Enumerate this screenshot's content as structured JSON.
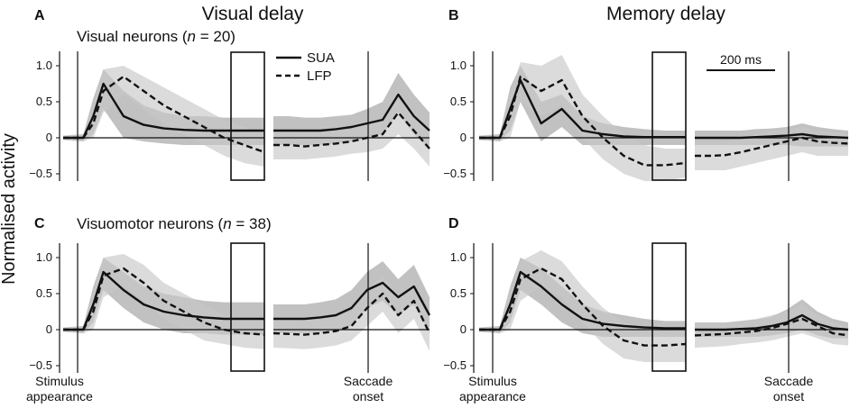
{
  "figure": {
    "ylabel": "Normalised activity",
    "columns": [
      "Visual delay",
      "Memory delay"
    ],
    "rows": [
      {
        "prefix": "Visual neurons (",
        "n_symbol": "n",
        "suffix": " = 20)"
      },
      {
        "prefix": "Visuomotor neurons (",
        "n_symbol": "n",
        "suffix": " = 38)"
      }
    ],
    "legend": {
      "sua": "SUA",
      "lfp": "LFP"
    },
    "scalebar": "200 ms",
    "event_labels": {
      "stim_1": "Stimulus",
      "stim_2": "appearance",
      "sacc_1": "Saccade",
      "sacc_2": "onset"
    },
    "yticks": [
      "1.0",
      "0.5",
      "0",
      "−0.5"
    ]
  },
  "chart_data": [
    {
      "type": "line",
      "panel": "A",
      "column": "Visual delay",
      "row": "Visual neurons (n = 20)",
      "ylim": [
        -0.6,
        1.2
      ],
      "yticks": [
        1.0,
        0.5,
        0,
        -0.5
      ],
      "stimulus_segment": {
        "x": [
          0,
          0.1,
          0.15,
          0.2,
          0.3,
          0.4,
          0.5,
          0.6,
          0.7,
          0.8,
          0.9,
          1.0
        ],
        "series": [
          {
            "name": "SUA",
            "values": [
              0,
              0,
              0.3,
              0.75,
              0.3,
              0.18,
              0.13,
              0.11,
              0.1,
              0.1,
              0.1,
              0.1
            ],
            "sem_upper": [
              0.03,
              0.05,
              0.55,
              0.95,
              0.65,
              0.45,
              0.35,
              0.3,
              0.3,
              0.28,
              0.28,
              0.28
            ],
            "sem_lower": [
              -0.03,
              -0.05,
              0.05,
              0.4,
              0.0,
              -0.05,
              -0.08,
              -0.1,
              -0.1,
              -0.1,
              -0.1,
              -0.1
            ]
          },
          {
            "name": "LFP",
            "values": [
              0,
              0,
              0.2,
              0.65,
              0.85,
              0.65,
              0.45,
              0.3,
              0.15,
              0.0,
              -0.1,
              -0.2
            ],
            "sem_upper": [
              0.03,
              0.05,
              0.45,
              0.95,
              1.0,
              0.85,
              0.7,
              0.55,
              0.4,
              0.25,
              0.15,
              0.05
            ],
            "sem_lower": [
              -0.03,
              -0.05,
              0.0,
              0.35,
              0.6,
              0.4,
              0.2,
              0.05,
              -0.1,
              -0.25,
              -0.35,
              -0.4
            ]
          }
        ]
      },
      "saccade_segment": {
        "x": [
          0,
          0.1,
          0.2,
          0.3,
          0.4,
          0.5,
          0.6,
          0.7,
          0.8,
          0.9,
          1.0
        ],
        "series": [
          {
            "name": "SUA",
            "values": [
              0.1,
              0.1,
              0.1,
              0.1,
              0.12,
              0.15,
              0.2,
              0.25,
              0.6,
              0.3,
              0.1
            ],
            "sem_upper": [
              0.3,
              0.3,
              0.28,
              0.28,
              0.3,
              0.32,
              0.4,
              0.5,
              0.9,
              0.6,
              0.35
            ],
            "sem_lower": [
              -0.1,
              -0.1,
              -0.1,
              -0.1,
              -0.08,
              -0.05,
              0.0,
              0.05,
              0.35,
              0.05,
              -0.15
            ]
          },
          {
            "name": "LFP",
            "values": [
              -0.1,
              -0.1,
              -0.12,
              -0.1,
              -0.08,
              -0.05,
              0.0,
              0.05,
              0.35,
              0.1,
              -0.15
            ],
            "sem_upper": [
              0.1,
              0.1,
              0.08,
              0.08,
              0.1,
              0.12,
              0.2,
              0.25,
              0.65,
              0.35,
              0.1
            ],
            "sem_lower": [
              -0.3,
              -0.3,
              -0.3,
              -0.28,
              -0.26,
              -0.22,
              -0.2,
              -0.15,
              0.05,
              -0.15,
              -0.4
            ]
          }
        ]
      }
    },
    {
      "type": "line",
      "panel": "B",
      "column": "Memory delay",
      "row": "Visual neurons (n = 20)",
      "ylim": [
        -0.6,
        1.2
      ],
      "yticks": [
        1.0,
        0.5,
        0,
        -0.5
      ],
      "stimulus_segment": {
        "x": [
          0,
          0.1,
          0.15,
          0.2,
          0.3,
          0.4,
          0.5,
          0.6,
          0.7,
          0.8,
          0.9,
          1.0
        ],
        "series": [
          {
            "name": "SUA",
            "values": [
              0,
              0,
              0.4,
              0.8,
              0.2,
              0.4,
              0.1,
              0.05,
              0.02,
              0.01,
              0.01,
              0.01
            ],
            "sem_upper": [
              0.03,
              0.05,
              0.7,
              1.0,
              0.5,
              0.6,
              0.3,
              0.2,
              0.15,
              0.12,
              0.1,
              0.1
            ],
            "sem_lower": [
              -0.03,
              -0.05,
              0.1,
              0.5,
              -0.05,
              0.15,
              -0.1,
              -0.1,
              -0.1,
              -0.1,
              -0.1,
              -0.1
            ]
          },
          {
            "name": "LFP",
            "values": [
              0,
              0,
              0.3,
              0.85,
              0.65,
              0.8,
              0.3,
              0.0,
              -0.25,
              -0.38,
              -0.38,
              -0.35
            ],
            "sem_upper": [
              0.03,
              0.05,
              0.6,
              1.05,
              1.0,
              1.15,
              0.6,
              0.3,
              0.05,
              -0.1,
              -0.15,
              -0.15
            ],
            "sem_lower": [
              -0.03,
              -0.05,
              0.0,
              0.5,
              0.3,
              0.45,
              0.0,
              -0.3,
              -0.5,
              -0.6,
              -0.6,
              -0.55
            ]
          }
        ]
      },
      "saccade_segment": {
        "x": [
          0,
          0.1,
          0.2,
          0.3,
          0.4,
          0.5,
          0.6,
          0.7,
          0.8,
          0.9,
          1.0
        ],
        "series": [
          {
            "name": "SUA",
            "values": [
              0.0,
              0.0,
              0.0,
              0.0,
              0.01,
              0.02,
              0.03,
              0.05,
              0.02,
              0.01,
              0.0
            ],
            "sem_upper": [
              0.1,
              0.1,
              0.1,
              0.1,
              0.12,
              0.13,
              0.15,
              0.2,
              0.15,
              0.12,
              0.1
            ],
            "sem_lower": [
              -0.1,
              -0.1,
              -0.1,
              -0.1,
              -0.1,
              -0.1,
              -0.1,
              -0.12,
              -0.12,
              -0.12,
              -0.12
            ]
          },
          {
            "name": "LFP",
            "values": [
              -0.25,
              -0.25,
              -0.24,
              -0.2,
              -0.15,
              -0.1,
              -0.05,
              0.0,
              -0.05,
              -0.07,
              -0.08
            ],
            "sem_upper": [
              -0.05,
              -0.05,
              -0.05,
              0.0,
              0.05,
              0.1,
              0.12,
              0.15,
              0.1,
              0.08,
              0.05
            ],
            "sem_lower": [
              -0.45,
              -0.45,
              -0.45,
              -0.4,
              -0.35,
              -0.3,
              -0.25,
              -0.2,
              -0.25,
              -0.25,
              -0.25
            ]
          }
        ]
      }
    },
    {
      "type": "line",
      "panel": "C",
      "column": "Visual delay",
      "row": "Visuomotor neurons (n = 38)",
      "ylim": [
        -0.6,
        1.2
      ],
      "yticks": [
        1.0,
        0.5,
        0,
        -0.5
      ],
      "stimulus_segment": {
        "x": [
          0,
          0.1,
          0.15,
          0.2,
          0.3,
          0.4,
          0.5,
          0.6,
          0.7,
          0.8,
          0.9,
          1.0
        ],
        "series": [
          {
            "name": "SUA",
            "values": [
              0,
              0,
              0.35,
              0.8,
              0.55,
              0.35,
              0.25,
              0.2,
              0.17,
              0.15,
              0.15,
              0.15
            ],
            "sem_upper": [
              0.03,
              0.05,
              0.6,
              1.0,
              0.8,
              0.6,
              0.5,
              0.45,
              0.4,
              0.38,
              0.38,
              0.38
            ],
            "sem_lower": [
              -0.03,
              -0.05,
              0.1,
              0.55,
              0.3,
              0.1,
              0.0,
              -0.05,
              -0.05,
              -0.07,
              -0.07,
              -0.07
            ]
          },
          {
            "name": "LFP",
            "values": [
              0,
              0,
              0.25,
              0.75,
              0.85,
              0.65,
              0.4,
              0.25,
              0.1,
              0.0,
              -0.05,
              -0.07
            ],
            "sem_upper": [
              0.03,
              0.05,
              0.5,
              1.0,
              1.05,
              0.9,
              0.65,
              0.5,
              0.35,
              0.2,
              0.15,
              0.12
            ],
            "sem_lower": [
              -0.03,
              -0.05,
              0.0,
              0.45,
              0.6,
              0.4,
              0.15,
              0.0,
              -0.15,
              -0.2,
              -0.25,
              -0.27
            ]
          }
        ]
      },
      "saccade_segment": {
        "x": [
          0,
          0.1,
          0.2,
          0.3,
          0.4,
          0.5,
          0.6,
          0.7,
          0.8,
          0.9,
          1.0
        ],
        "series": [
          {
            "name": "SUA",
            "values": [
              0.15,
              0.15,
              0.15,
              0.17,
              0.2,
              0.3,
              0.55,
              0.65,
              0.45,
              0.6,
              0.2
            ],
            "sem_upper": [
              0.35,
              0.35,
              0.35,
              0.38,
              0.42,
              0.55,
              0.8,
              0.95,
              0.7,
              0.9,
              0.45
            ],
            "sem_lower": [
              -0.05,
              -0.05,
              -0.05,
              -0.04,
              -0.02,
              0.05,
              0.3,
              0.4,
              0.2,
              0.35,
              -0.05
            ]
          },
          {
            "name": "LFP",
            "values": [
              -0.05,
              -0.06,
              -0.07,
              -0.05,
              -0.02,
              0.05,
              0.3,
              0.5,
              0.2,
              0.4,
              -0.05
            ],
            "sem_upper": [
              0.15,
              0.14,
              0.13,
              0.15,
              0.18,
              0.25,
              0.55,
              0.75,
              0.45,
              0.65,
              0.2
            ],
            "sem_lower": [
              -0.25,
              -0.26,
              -0.27,
              -0.25,
              -0.22,
              -0.15,
              0.05,
              0.25,
              -0.05,
              0.15,
              -0.3
            ]
          }
        ]
      }
    },
    {
      "type": "line",
      "panel": "D",
      "column": "Memory delay",
      "row": "Visuomotor neurons (n = 38)",
      "ylim": [
        -0.6,
        1.2
      ],
      "yticks": [
        1.0,
        0.5,
        0,
        -0.5
      ],
      "stimulus_segment": {
        "x": [
          0,
          0.1,
          0.15,
          0.2,
          0.3,
          0.4,
          0.5,
          0.6,
          0.7,
          0.8,
          0.9,
          1.0
        ],
        "series": [
          {
            "name": "SUA",
            "values": [
              0,
              0,
              0.35,
              0.8,
              0.6,
              0.35,
              0.15,
              0.08,
              0.05,
              0.03,
              0.02,
              0.02
            ],
            "sem_upper": [
              0.03,
              0.05,
              0.6,
              1.0,
              0.85,
              0.6,
              0.35,
              0.25,
              0.2,
              0.15,
              0.12,
              0.12
            ],
            "sem_lower": [
              -0.03,
              -0.05,
              0.1,
              0.55,
              0.35,
              0.1,
              -0.05,
              -0.1,
              -0.1,
              -0.1,
              -0.1,
              -0.1
            ]
          },
          {
            "name": "LFP",
            "values": [
              0,
              0,
              0.25,
              0.7,
              0.85,
              0.7,
              0.35,
              0.05,
              -0.15,
              -0.22,
              -0.22,
              -0.2
            ],
            "sem_upper": [
              0.03,
              0.05,
              0.5,
              0.95,
              1.1,
              0.95,
              0.6,
              0.3,
              0.1,
              0.0,
              -0.02,
              0.0
            ],
            "sem_lower": [
              -0.03,
              -0.05,
              0.0,
              0.4,
              0.6,
              0.45,
              0.1,
              -0.2,
              -0.4,
              -0.45,
              -0.45,
              -0.45
            ]
          }
        ]
      },
      "saccade_segment": {
        "x": [
          0,
          0.1,
          0.2,
          0.3,
          0.4,
          0.5,
          0.6,
          0.7,
          0.8,
          0.9,
          1.0
        ],
        "series": [
          {
            "name": "SUA",
            "values": [
              0.0,
              0.0,
              0.0,
              0.01,
              0.02,
              0.05,
              0.1,
              0.2,
              0.08,
              0.02,
              0.0
            ],
            "sem_upper": [
              0.1,
              0.1,
              0.1,
              0.12,
              0.14,
              0.18,
              0.28,
              0.42,
              0.25,
              0.15,
              0.1
            ],
            "sem_lower": [
              -0.1,
              -0.1,
              -0.1,
              -0.1,
              -0.1,
              -0.08,
              -0.05,
              0.0,
              -0.08,
              -0.12,
              -0.12
            ]
          },
          {
            "name": "LFP",
            "values": [
              -0.08,
              -0.07,
              -0.06,
              -0.04,
              -0.02,
              0.02,
              0.08,
              0.15,
              0.05,
              -0.05,
              -0.08
            ],
            "sem_upper": [
              0.1,
              0.1,
              0.1,
              0.12,
              0.15,
              0.2,
              0.25,
              0.35,
              0.2,
              0.1,
              0.05
            ],
            "sem_lower": [
              -0.25,
              -0.24,
              -0.23,
              -0.2,
              -0.18,
              -0.15,
              -0.1,
              -0.05,
              -0.12,
              -0.2,
              -0.22
            ]
          }
        ]
      }
    }
  ]
}
